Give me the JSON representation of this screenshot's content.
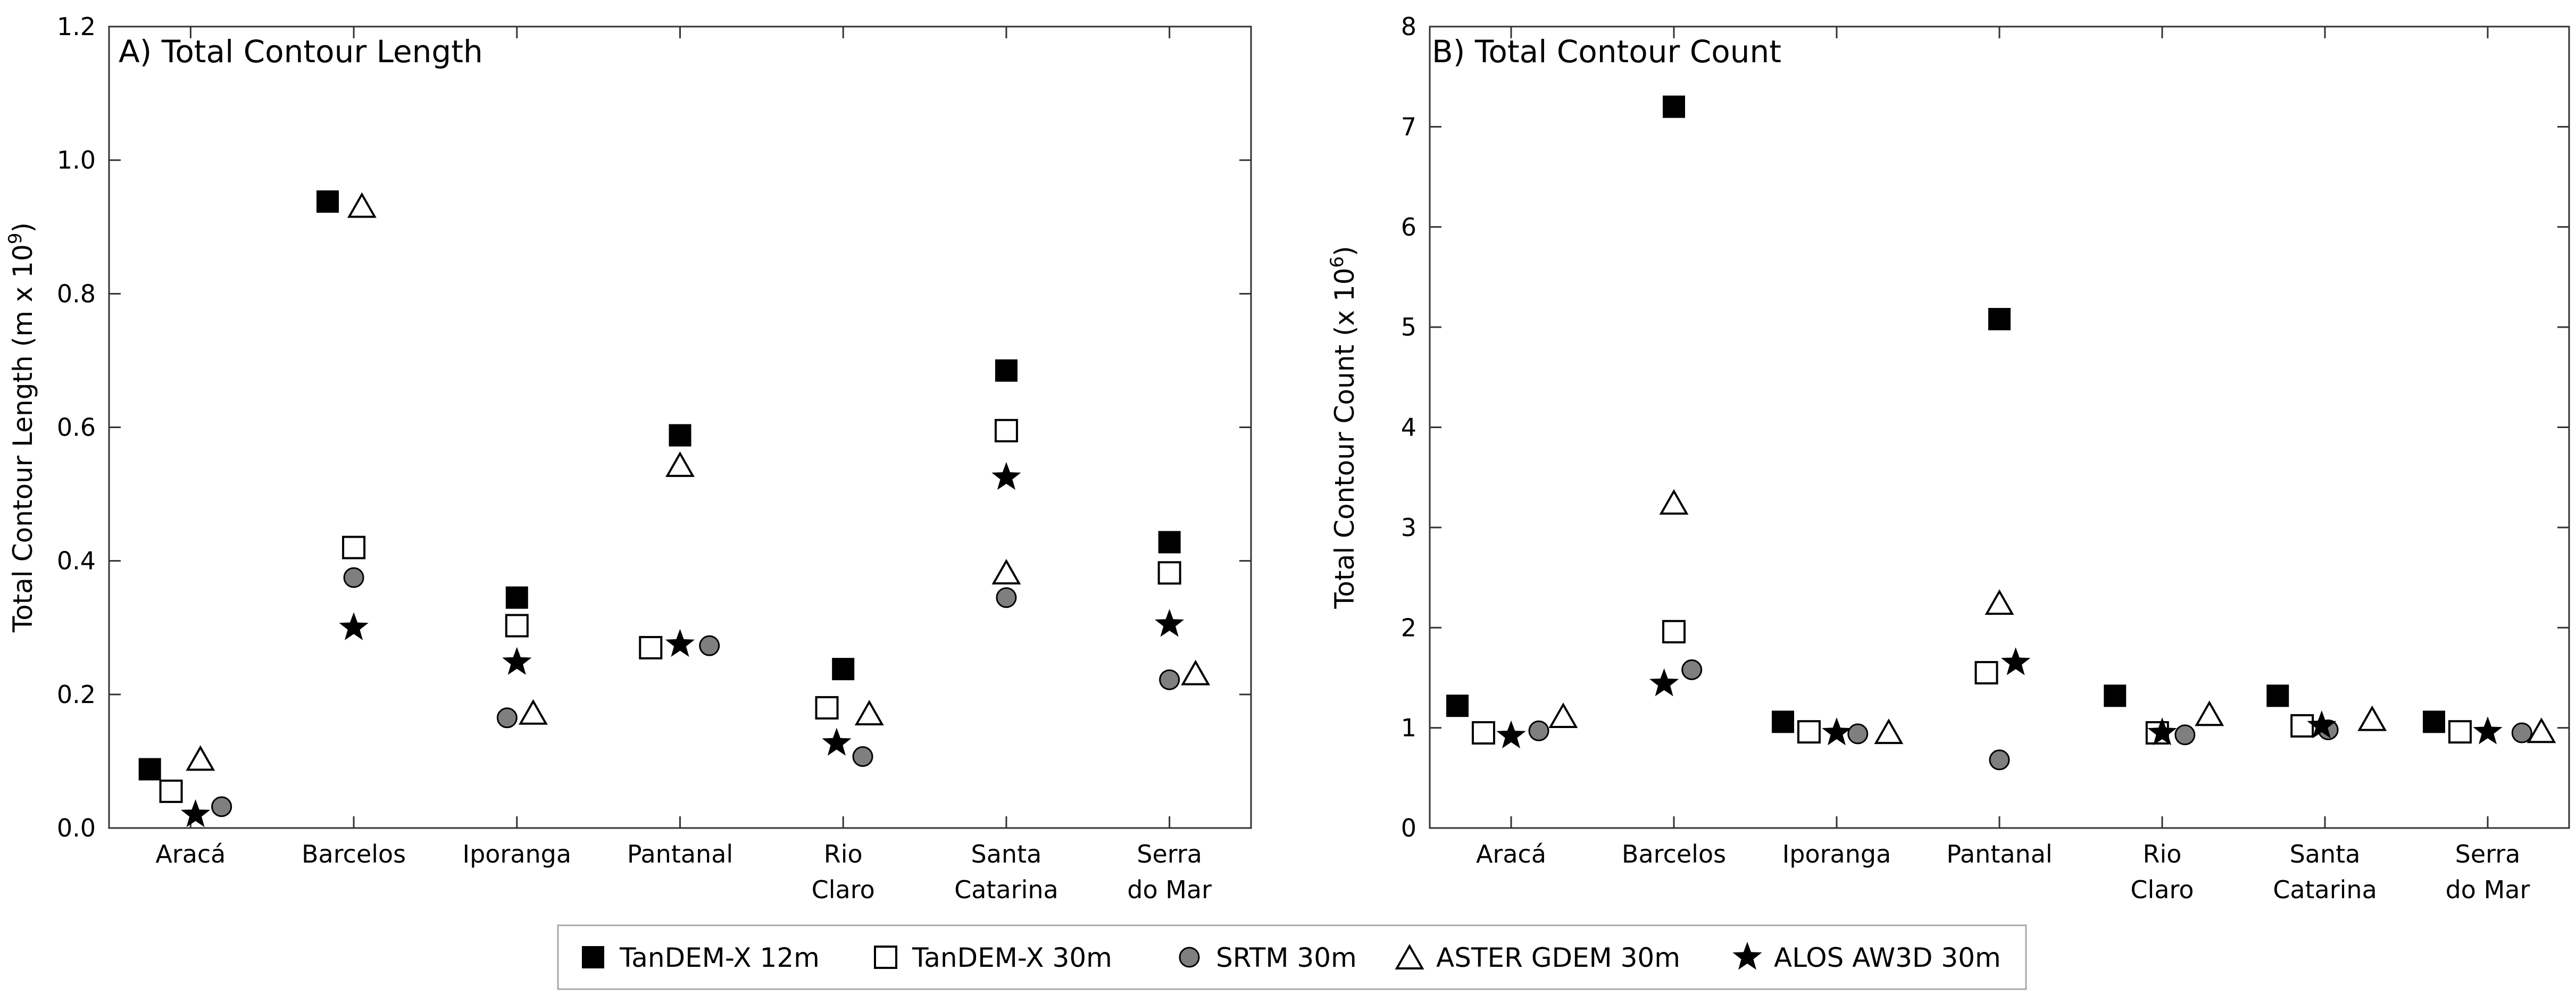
{
  "legend": [
    {
      "key": "tdx12",
      "label": "TanDEM-X 12m",
      "marker": "square-filled"
    },
    {
      "key": "tdx30",
      "label": "TanDEM-X 30m",
      "marker": "square-open"
    },
    {
      "key": "srtm",
      "label": "SRTM 30m",
      "marker": "circle-gray"
    },
    {
      "key": "aster",
      "label": "ASTER GDEM 30m",
      "marker": "triangle-open"
    },
    {
      "key": "alos",
      "label": "ALOS AW3D 30m",
      "marker": "star-filled"
    }
  ],
  "chart_data": [
    {
      "type": "scatter",
      "title": "A) Total Contour Length",
      "ylabel": "Total Contour Length (m x 10",
      "ylabel_sup": "9",
      "ylabel_end": ")",
      "ylim": [
        0,
        1.2
      ],
      "yticks": [
        "0.0",
        "0.2",
        "0.4",
        "0.6",
        "0.8",
        "1.0",
        "1.2"
      ],
      "categories": [
        [
          "Aracá"
        ],
        [
          "Barcelos"
        ],
        [
          "Iporanga"
        ],
        [
          "Pantanal"
        ],
        [
          "Rio",
          "Claro"
        ],
        [
          "Santa",
          "Catarina"
        ],
        [
          "Serra",
          "do Mar"
        ]
      ],
      "series": [
        {
          "key": "tdx12",
          "name": "TanDEM-X 12m",
          "values": [
            0.088,
            0.938,
            0.345,
            0.588,
            0.238,
            0.685,
            0.428
          ],
          "offsets": [
            -0.25,
            -0.16,
            0,
            0,
            0,
            0,
            0
          ]
        },
        {
          "key": "tdx30",
          "name": "TanDEM-X 30m",
          "values": [
            0.055,
            0.42,
            0.303,
            0.27,
            0.18,
            0.595,
            0.382
          ],
          "offsets": [
            -0.12,
            0,
            0,
            -0.18,
            -0.1,
            0,
            0
          ]
        },
        {
          "key": "srtm",
          "name": "SRTM 30m",
          "values": [
            0.032,
            0.375,
            0.165,
            0.273,
            0.107,
            0.345,
            0.222
          ],
          "offsets": [
            0.19,
            0,
            -0.06,
            0.18,
            0.12,
            0,
            0
          ]
        },
        {
          "key": "aster",
          "name": "ASTER GDEM 30m",
          "values": [
            0.104,
            0.932,
            0.173,
            0.544,
            0.172,
            0.383,
            0.232
          ],
          "offsets": [
            0.06,
            0.05,
            0.1,
            0,
            0.16,
            0,
            0.16
          ]
        },
        {
          "key": "alos",
          "name": "ALOS AW3D 30m",
          "values": [
            0.02,
            0.3,
            0.248,
            0.275,
            0.127,
            0.525,
            0.305
          ],
          "offsets": [
            0.03,
            0,
            0,
            0,
            -0.04,
            0,
            0
          ]
        }
      ]
    },
    {
      "type": "scatter",
      "title": "B) Total Contour Count",
      "ylabel": "Total Contour Count (x 10",
      "ylabel_sup": "6",
      "ylabel_end": ")",
      "ylim": [
        0,
        8
      ],
      "yticks": [
        "0",
        "1",
        "2",
        "3",
        "4",
        "5",
        "6",
        "7",
        "8"
      ],
      "categories": [
        [
          "Aracá"
        ],
        [
          "Barcelos"
        ],
        [
          "Iporanga"
        ],
        [
          "Pantanal"
        ],
        [
          "Rio",
          "Claro"
        ],
        [
          "Santa",
          "Catarina"
        ],
        [
          "Serra",
          "do Mar"
        ]
      ],
      "series": [
        {
          "key": "tdx12",
          "name": "TanDEM-X 12m",
          "values": [
            1.22,
            7.2,
            1.06,
            5.08,
            1.32,
            1.32,
            1.06
          ],
          "offsets": [
            -0.33,
            0,
            -0.33,
            0,
            -0.29,
            -0.29,
            -0.33
          ]
        },
        {
          "key": "tdx30",
          "name": "TanDEM-X 30m",
          "values": [
            0.95,
            1.96,
            0.96,
            1.55,
            0.95,
            1.02,
            0.96
          ],
          "offsets": [
            -0.17,
            0,
            -0.17,
            -0.08,
            -0.03,
            -0.14,
            -0.17
          ]
        },
        {
          "key": "srtm",
          "name": "SRTM 30m",
          "values": [
            0.97,
            1.58,
            0.94,
            0.68,
            0.93,
            0.98,
            0.95
          ],
          "offsets": [
            0.17,
            0.11,
            0.13,
            0,
            0.14,
            0.02,
            0.21
          ]
        },
        {
          "key": "aster",
          "name": "ASTER GDEM 30m",
          "values": [
            1.12,
            3.25,
            0.96,
            2.25,
            1.14,
            1.09,
            0.97
          ],
          "offsets": [
            0.32,
            0,
            0.32,
            0,
            0.29,
            0.29,
            0.33
          ]
        },
        {
          "key": "alos",
          "name": "ALOS AW3D 30m",
          "values": [
            0.92,
            1.44,
            0.95,
            1.65,
            0.95,
            1.02,
            0.96
          ],
          "offsets": [
            0,
            -0.06,
            0,
            0.1,
            0,
            -0.02,
            0
          ]
        }
      ]
    }
  ]
}
